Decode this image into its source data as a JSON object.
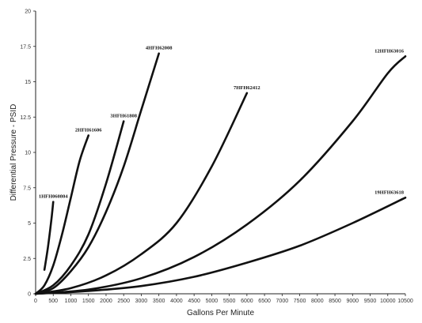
{
  "chart_data": {
    "type": "line",
    "title": "",
    "xlabel": "Gallons Per Minute",
    "ylabel": "Differential Pressure - PSID",
    "xlim": [
      0,
      10500
    ],
    "ylim": [
      0,
      20
    ],
    "xticks": [
      0,
      500,
      1000,
      1500,
      2000,
      2500,
      3000,
      3500,
      4000,
      4500,
      5000,
      5500,
      6000,
      6500,
      7000,
      7500,
      8000,
      8500,
      9000,
      9500,
      10000,
      10500
    ],
    "xtick_labels": [
      "0",
      "500",
      "1000",
      "1500",
      "2000",
      "2500",
      "3000",
      "3500",
      "4000",
      "4500",
      "5000",
      "5500",
      "6000",
      "6500",
      "7000",
      "7500",
      "8000",
      "8500",
      "9000",
      "9500",
      "10000",
      "10500"
    ],
    "yticks": [
      0,
      2.5,
      5,
      7.5,
      10,
      12.5,
      15,
      17.5,
      20
    ],
    "ytick_labels": [
      "0",
      "2.5",
      "5",
      "7.5",
      "10",
      "12.5",
      "15",
      "17.5",
      "20"
    ],
    "grid": false,
    "legend": "none",
    "series": [
      {
        "name": "1HFH060804",
        "x": [
          250,
          350,
          450,
          500
        ],
        "y": [
          1.7,
          3.3,
          5.3,
          6.5
        ]
      },
      {
        "name": "2HFH61606",
        "x": [
          0,
          250,
          500,
          750,
          1000,
          1250,
          1500
        ],
        "y": [
          0,
          0.6,
          2.0,
          4.2,
          6.8,
          9.4,
          11.2
        ]
      },
      {
        "name": "3HFH61808",
        "x": [
          0,
          500,
          1000,
          1500,
          2000,
          2500
        ],
        "y": [
          0,
          0.6,
          2.0,
          4.2,
          7.8,
          12.2
        ]
      },
      {
        "name": "4HFH62008",
        "x": [
          0,
          500,
          1000,
          1500,
          2000,
          2500,
          3000,
          3500
        ],
        "y": [
          0,
          0.4,
          1.6,
          3.3,
          5.8,
          9.0,
          13.0,
          17.0
        ]
      },
      {
        "name": "7HFH62412",
        "x": [
          0,
          1000,
          2000,
          3000,
          4000,
          5000,
          6000
        ],
        "y": [
          0,
          0.4,
          1.3,
          2.8,
          5.0,
          9.0,
          14.2
        ]
      },
      {
        "name": "12HFH63016",
        "x": [
          0,
          1500,
          3000,
          4500,
          6000,
          7500,
          9000,
          10000,
          10500
        ],
        "y": [
          0,
          0.3,
          1.1,
          2.6,
          4.9,
          8.0,
          12.2,
          15.6,
          16.8
        ]
      },
      {
        "name": "19HFH63618",
        "x": [
          0,
          1500,
          3000,
          4500,
          6000,
          7500,
          9000,
          10500
        ],
        "y": [
          0,
          0.2,
          0.55,
          1.2,
          2.2,
          3.4,
          5.0,
          6.8
        ]
      }
    ]
  }
}
